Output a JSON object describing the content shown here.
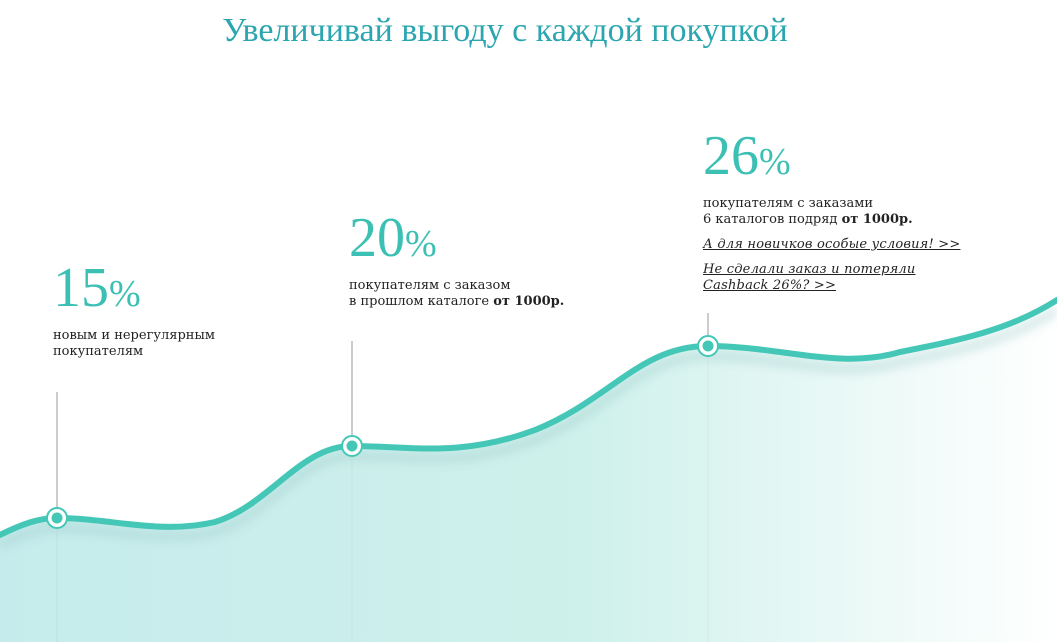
{
  "page": {
    "title": "Увеличивай выгоду с каждой покупкой",
    "accent_color": "#3cc0b4",
    "title_color": "#2ba6b0"
  },
  "tiers": [
    {
      "value": "15",
      "sign": "%",
      "desc_line1": "новым и нерегулярным",
      "desc_line2": "покупателям"
    },
    {
      "value": "20",
      "sign": "%",
      "desc_line1": "покупателям с заказом",
      "desc_line2_pre": "в прошлом каталоге",
      "desc_line2_bold": "от 1000р."
    },
    {
      "value": "26",
      "sign": "%",
      "desc_line1": "покупателям с заказами",
      "desc_line2_pre": "6 каталогов подряд",
      "desc_line2_bold": "от 1000р.",
      "link1": "А для новичков особые условия! >>",
      "link2_line1": "Не сделали заказ и потеряли",
      "link2_line2": "Cashback 26%? >>"
    }
  ]
}
